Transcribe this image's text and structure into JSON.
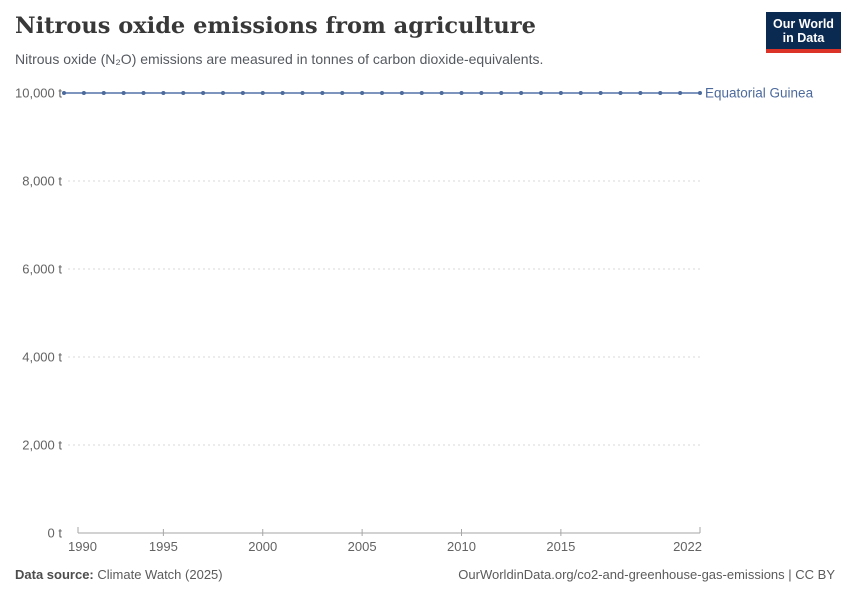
{
  "page": {
    "background": "#ffffff"
  },
  "header": {
    "title": "Nitrous oxide emissions from agriculture",
    "subtitle": "Nitrous oxide (N₂O) emissions are measured in tonnes of carbon dioxide-equivalents.",
    "logo": {
      "line1": "Our World",
      "line2": "in Data",
      "bg_color": "#0b2a51",
      "bar_color": "#dc3328"
    }
  },
  "chart_data": {
    "type": "line",
    "title": "Nitrous oxide emissions from agriculture",
    "unit": "tonnes of carbon dioxide-equivalents",
    "xlim": [
      1990,
      2022
    ],
    "ylim": [
      0,
      10000
    ],
    "grid": "horizontal-dashed",
    "legend_position": "line-end-label",
    "axis_color": "#a6a6a6",
    "grid_color": "#d8d8d8",
    "tick_label_color": "#636363",
    "series": [
      {
        "name": "Equatorial Guinea",
        "color": "#4c6a9c",
        "line_color": "#7e96bd",
        "x": [
          1990,
          1991,
          1992,
          1993,
          1994,
          1995,
          1996,
          1997,
          1998,
          1999,
          2000,
          2001,
          2002,
          2003,
          2004,
          2005,
          2006,
          2007,
          2008,
          2009,
          2010,
          2011,
          2012,
          2013,
          2014,
          2015,
          2016,
          2017,
          2018,
          2019,
          2020,
          2021,
          2022
        ],
        "values": [
          10000,
          10000,
          10000,
          10000,
          10000,
          10000,
          10000,
          10000,
          10000,
          10000,
          10000,
          10000,
          10000,
          10000,
          10000,
          10000,
          10000,
          10000,
          10000,
          10000,
          10000,
          10000,
          10000,
          10000,
          10000,
          10000,
          10000,
          10000,
          10000,
          10000,
          10000,
          10000,
          10000
        ]
      }
    ],
    "xticks": [
      {
        "value": 1990,
        "label": "1990"
      },
      {
        "value": 1995,
        "label": "1995"
      },
      {
        "value": 2000,
        "label": "2000"
      },
      {
        "value": 2005,
        "label": "2005"
      },
      {
        "value": 2010,
        "label": "2010"
      },
      {
        "value": 2015,
        "label": "2015"
      },
      {
        "value": 2022,
        "label": "2022"
      }
    ],
    "yticks": [
      {
        "value": 0,
        "label": "0 t"
      },
      {
        "value": 2000,
        "label": "2,000 t"
      },
      {
        "value": 4000,
        "label": "4,000 t"
      },
      {
        "value": 6000,
        "label": "6,000 t"
      },
      {
        "value": 8000,
        "label": "8,000 t"
      },
      {
        "value": 10000,
        "label": "10,000 t"
      }
    ]
  },
  "footer": {
    "datasource_label": "Data source:",
    "datasource_value": "Climate Watch (2025)",
    "credit": "OurWorldinData.org/co2-and-greenhouse-gas-emissions | CC BY"
  }
}
